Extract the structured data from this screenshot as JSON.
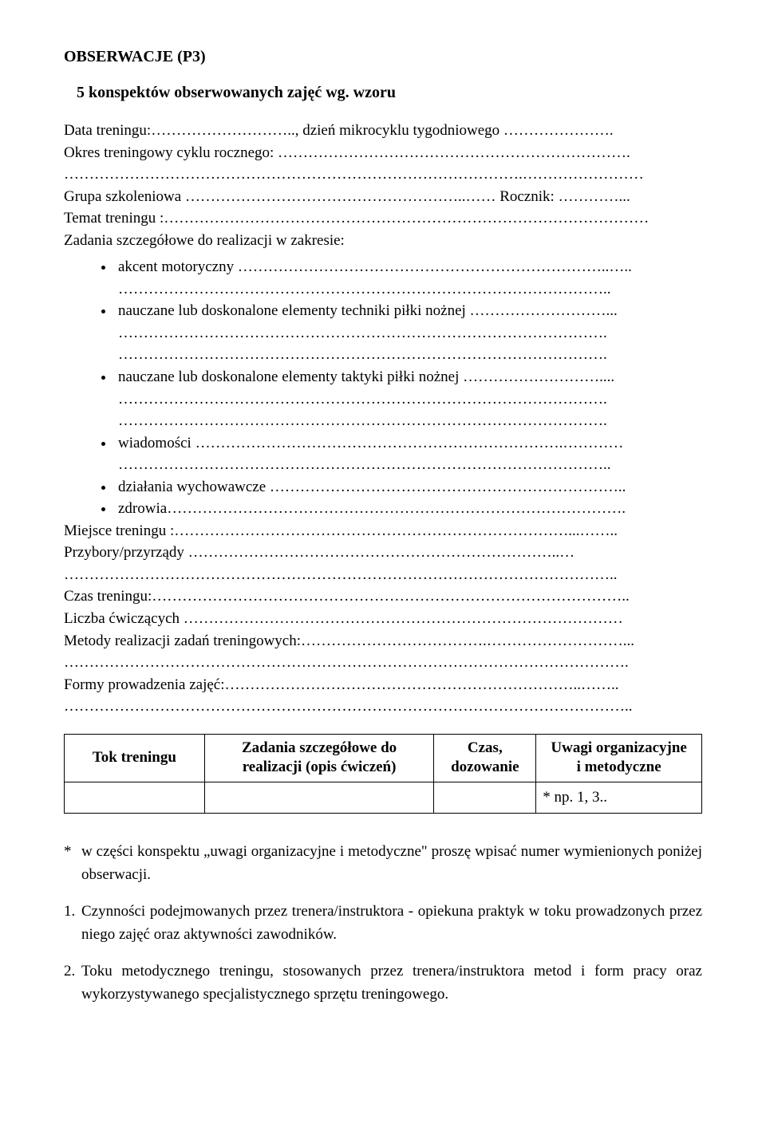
{
  "header": {
    "title": "OBSERWACJE (P3)",
    "subtitle": "5 konspektów obserwowanych zajęć wg. wzoru"
  },
  "fields": {
    "data_treningu": "Data treningu:……………………….., dzień mikrocyklu tygodniowego ………………….",
    "okres": "Okres treningowy cyklu rocznego: …………………………………………………………….",
    "okres_cont": "……………………………………………………………………………….……………………",
    "grupa": "Grupa szkoleniowa ………………………………………………..…… Rocznik: …………...",
    "temat": "Temat treningu :……………………………………………………………………………………",
    "zadania_label": "Zadania szczegółowe do realizacji w zakresie:"
  },
  "bullets": {
    "akcent": "akcent motoryczny ………………………………………………………………..…..",
    "akcent_cont": "……………………………………………………………………………………..",
    "technika": "nauczane lub doskonalone elementy techniki piłki nożnej ………………………...",
    "technika_cont1": "…………………………………………………………………………………….",
    "technika_cont2": "…………………………………………………………………………………….",
    "taktyka": "nauczane lub doskonalone elementy taktyki piłki nożnej ………………………....",
    "taktyka_cont1": "…………………………………………………………………………………….",
    "taktyka_cont2": "…………………………………………………………………………………….",
    "wiadomosci": "wiadomości ……………………………………………………………….…………",
    "wiadomosci_cont": "……………………………………………………………………………………..",
    "dzialania": "działania wychowawcze ……………………………………………………………..",
    "zdrowia": "zdrowia………………………………………………………………………………."
  },
  "lower": {
    "miejsce": "Miejsce treningu :……………………………………………………………………...……..",
    "przybory": "Przybory/przyrządy ………………………………………………………………..…",
    "przybory_cont": "………………………………………………………………………………………………..",
    "czas": "Czas treningu:…………………………………………………………………………………..",
    "liczba": "Liczba ćwiczących ……………………………………………………………………………",
    "metody": "Metody realizacji zadań treningowych:……………………………….………………………...",
    "metody_cont": "………………………………………………………………………………………………….",
    "formy": "Formy prowadzenia zajęć:……………………………………………………………..……..",
    "formy_cont": "………………………………………………………………………………………………….."
  },
  "table": {
    "h1": "Tok treningu",
    "h2a": "Zadania szczegółowe do",
    "h2b": "realizacji (opis ćwiczeń)",
    "h3a": "Czas,",
    "h3b": "dozowanie",
    "h4a": "Uwagi organizacyjne",
    "h4b": "i metodyczne",
    "row_cell4": "* np. 1, 3.."
  },
  "notes": {
    "star_marker": "*",
    "star_text": "w części konspektu „uwagi organizacyjne i metodyczne\" proszę wpisać numer wymienionych poniżej obserwacji.",
    "n1_marker": "1.",
    "n1_text": "Czynności podejmowanych przez trenera/instruktora - opiekuna praktyk w toku prowadzonych przez niego zajęć oraz aktywności zawodników.",
    "n2_marker": "2.",
    "n2_text": "Toku metodycznego treningu, stosowanych przez trenera/instruktora metod i form pracy oraz wykorzystywanego specjalistycznego sprzętu treningowego."
  }
}
